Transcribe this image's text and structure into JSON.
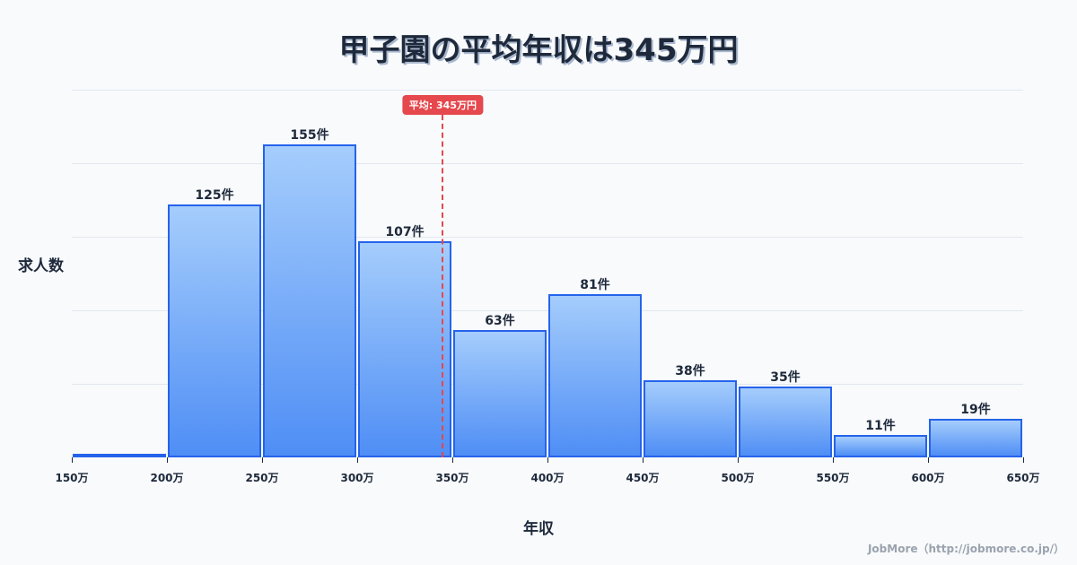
{
  "title": "甲子園の平均年収は345万円",
  "ylabel": "求人数",
  "xlabel": "年収",
  "average_badge": "平均: 345万円",
  "footer": "JobMore（http://jobmore.co.jp/）",
  "colors": {
    "bar_border": "#2563eb",
    "bar_top": "#a5cdfc",
    "bar_bottom": "#4f8ef5",
    "avg_line": "#e5484d",
    "text": "#1e293b"
  },
  "chart_data": {
    "type": "bar",
    "title": "甲子園の平均年収は345万円",
    "xlabel": "年収",
    "ylabel": "求人数",
    "bins": [
      "150万-200万",
      "200万-250万",
      "250万-300万",
      "300万-350万",
      "350万-400万",
      "400万-450万",
      "450万-500万",
      "500万-550万",
      "550万-600万",
      "600万-650万"
    ],
    "categories": [
      "150万",
      "200万",
      "250万",
      "300万",
      "350万",
      "400万",
      "450万",
      "500万",
      "550万",
      "600万"
    ],
    "values": [
      1,
      125,
      155,
      107,
      63,
      81,
      38,
      35,
      11,
      19
    ],
    "value_labels": [
      "",
      "125件",
      "155件",
      "107件",
      "63件",
      "81件",
      "38件",
      "35件",
      "11件",
      "19件"
    ],
    "x_ticks": [
      "150万",
      "200万",
      "250万",
      "300万",
      "350万",
      "400万",
      "450万",
      "500万",
      "550万",
      "600万",
      "650万"
    ],
    "xlim": [
      150,
      650
    ],
    "ylim": [
      0,
      182
    ],
    "grid": true,
    "average": {
      "value": 345,
      "label": "平均: 345万円"
    },
    "legend": null
  }
}
